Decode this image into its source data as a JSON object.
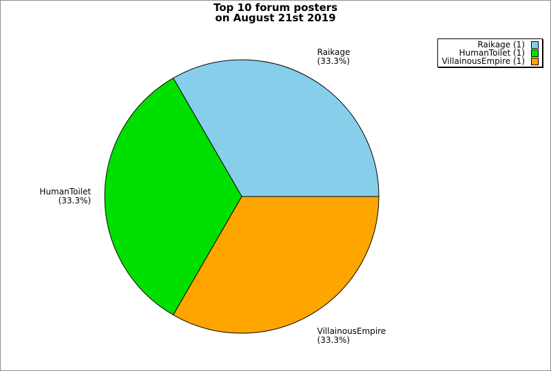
{
  "window": {
    "background_color": "#ffffff",
    "frame_border_color": "#8c8c8c"
  },
  "title": {
    "line1": "Top 10 forum posters",
    "line2": "on August 21st 2019"
  },
  "chart_data": {
    "type": "pie",
    "title": "Top 10 forum posters\non August 21st 2019",
    "start_angle_deg": 0,
    "direction": "counterclockwise",
    "edge_color": "#000000",
    "legend_position": "top-right",
    "slices": [
      {
        "name": "Raikage",
        "value": 1,
        "percent": 33.3,
        "percent_label": "(33.3%)",
        "color": "#87CEEB",
        "legend_label": "Raikage (1)"
      },
      {
        "name": "HumanToilet",
        "value": 1,
        "percent": 33.3,
        "percent_label": "(33.3%)",
        "color": "#00E000",
        "legend_label": "HumanToilet (1)"
      },
      {
        "name": "VillainousEmpire",
        "value": 1,
        "percent": 33.3,
        "percent_label": "(33.3%)",
        "color": "#FFA500",
        "legend_label": "VillainousEmpire (1)"
      }
    ]
  }
}
